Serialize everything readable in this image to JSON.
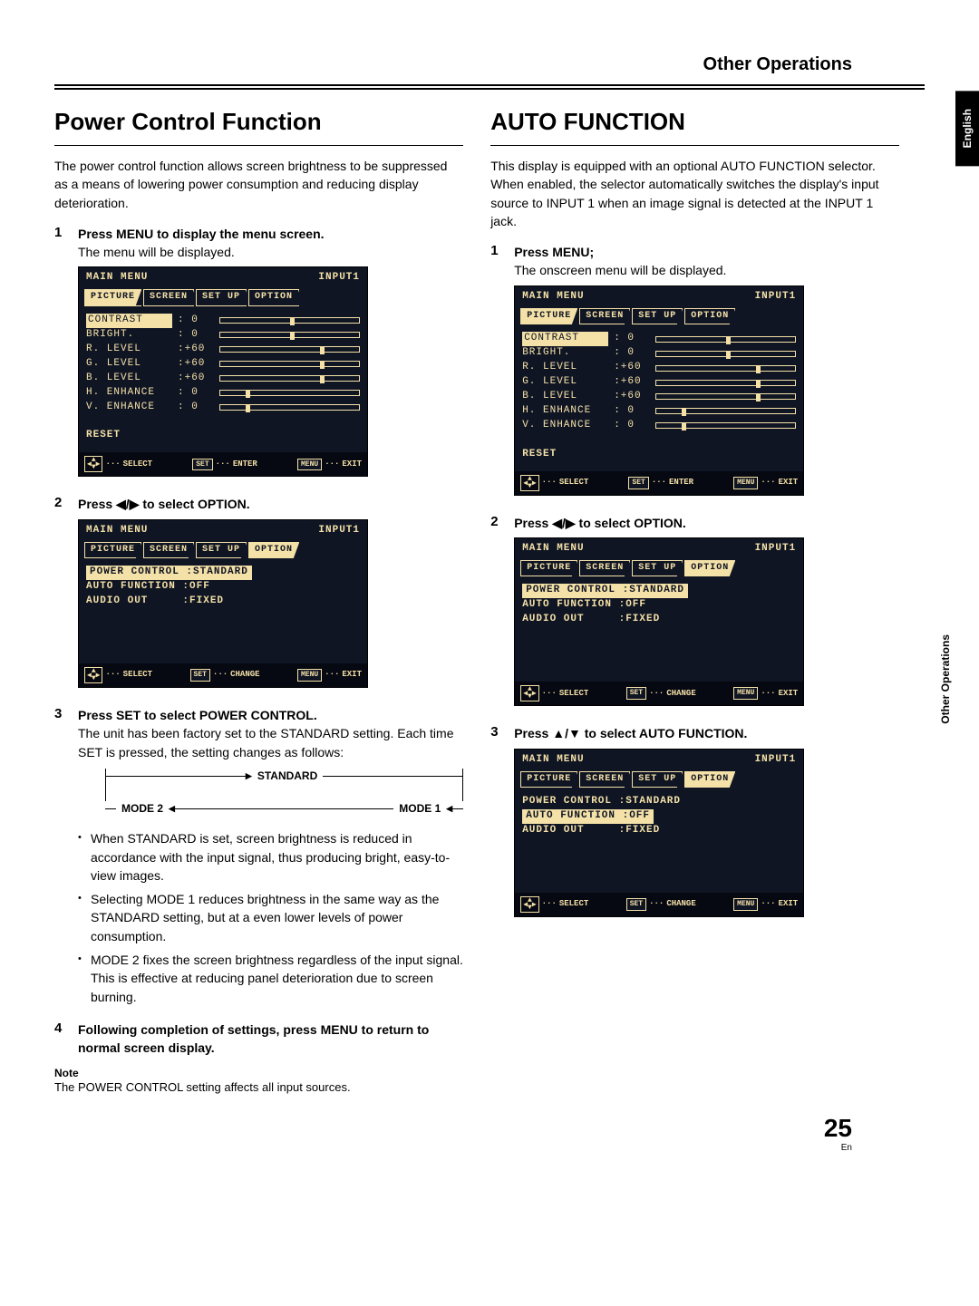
{
  "header_section": "Other Operations",
  "lang_tab": "English",
  "side_tab": "Other Operations",
  "page_number": "25",
  "page_lang": "En",
  "left": {
    "title": "Power Control Function",
    "intro": "The power control function allows screen brightness to be suppressed as a means of lowering power consumption and reducing display deterioration.",
    "steps": [
      {
        "n": "1",
        "h": "Press MENU to display the menu screen.",
        "t": "The menu will be displayed."
      },
      {
        "n": "2",
        "h": "Press ◀/▶ to select OPTION."
      },
      {
        "n": "3",
        "h": "Press SET to select POWER CONTROL.",
        "t": "The unit has been factory set to the STANDARD setting. Each time SET is pressed, the setting changes as follows:"
      },
      {
        "n": "4",
        "h": "Following completion of settings, press MENU to return to normal screen display."
      }
    ],
    "cycle": {
      "a": "STANDARD",
      "b": "MODE 1",
      "c": "MODE 2"
    },
    "bullets": [
      "When STANDARD is set, screen brightness is reduced in accordance with the input signal, thus producing bright, easy-to-view images.",
      "Selecting MODE 1 reduces brightness in the same way as the STANDARD setting, but at a even lower levels of power consumption.",
      "MODE 2 fixes the screen brightness regardless of the input signal. This is effective at reducing panel deterioration due to screen burning."
    ],
    "note_h": "Note",
    "note_t": "The POWER CONTROL setting affects all input sources."
  },
  "right": {
    "title": "AUTO FUNCTION",
    "intro": "This display is equipped with an optional AUTO FUNCTION selector. When enabled, the selector automatically switches the display's input source to INPUT 1 when an image signal is detected at the INPUT 1 jack.",
    "steps": [
      {
        "n": "1",
        "h": "Press MENU;",
        "t": "The onscreen menu will be displayed."
      },
      {
        "n": "2",
        "h": "Press ◀/▶ to select OPTION."
      },
      {
        "n": "3",
        "h": "Press ▲/▼ to select AUTO FUNCTION."
      }
    ]
  },
  "menu_picture": {
    "title": "MAIN MENU",
    "input": "INPUT1",
    "tabs": [
      "PICTURE",
      "SCREEN",
      "SET UP",
      "OPTION"
    ],
    "sel": 0,
    "rows": [
      {
        "l": "CONTRAST",
        "v": ": 0",
        "p": 50
      },
      {
        "l": "BRIGHT.",
        "v": ": 0",
        "p": 50
      },
      {
        "l": "R. LEVEL",
        "v": ":+60",
        "p": 72
      },
      {
        "l": "G. LEVEL",
        "v": ":+60",
        "p": 72
      },
      {
        "l": "B. LEVEL",
        "v": ":+60",
        "p": 72
      },
      {
        "l": "H. ENHANCE",
        "v": ": 0",
        "p": 18
      },
      {
        "l": "V. ENHANCE",
        "v": ": 0",
        "p": 18
      }
    ],
    "reset": "RESET",
    "foot": {
      "a": "SELECT",
      "b": "ENTER",
      "b_key": "SET",
      "c": "EXIT",
      "c_key": "MENU"
    }
  },
  "menu_option": {
    "title": "MAIN MENU",
    "input": "INPUT1",
    "tabs": [
      "PICTURE",
      "SCREEN",
      "SET UP",
      "OPTION"
    ],
    "sel": 3,
    "rows": [
      "POWER CONTROL :STANDARD",
      "AUTO FUNCTION :OFF",
      "AUDIO OUT     :FIXED"
    ],
    "foot": {
      "a": "SELECT",
      "b": "CHANGE",
      "b_key": "SET",
      "c": "EXIT",
      "c_key": "MENU"
    }
  },
  "menu_option_auto": {
    "sel_row": 1
  }
}
